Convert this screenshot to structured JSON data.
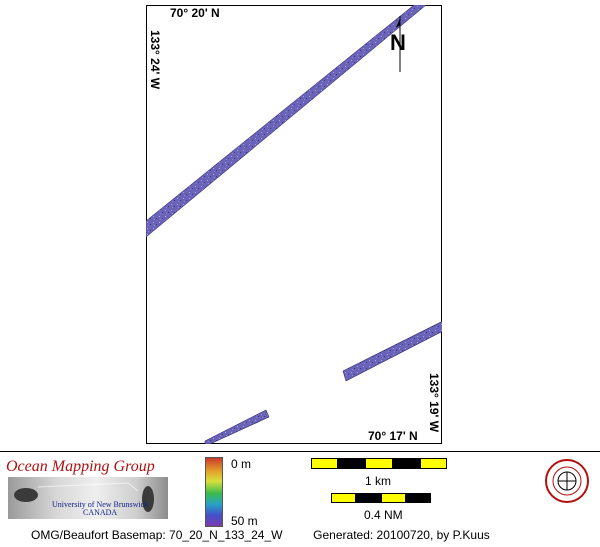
{
  "map": {
    "top_latitude": "70° 20' N",
    "bottom_latitude": "70° 17' N",
    "left_longitude": "133° 24' W",
    "right_longitude": "133° 19' W",
    "north_label": "N",
    "swath_color": "#6a63b8"
  },
  "legend": {
    "organization": "Ocean Mapping Group",
    "university_line1": "University of New Brunswick",
    "university_line2": "CANADA",
    "depth_top": "0 m",
    "depth_bottom": "50 m",
    "scale_km_label": "1 km",
    "scale_nm_label": "0.4 NM",
    "scale_colors": [
      "#ffff00",
      "#000000"
    ]
  },
  "caption": {
    "basemap": "OMG/Beaufort Basemap: 70_20_N_133_24_W",
    "generated": "Generated: 20100720, by P.Kuus"
  }
}
